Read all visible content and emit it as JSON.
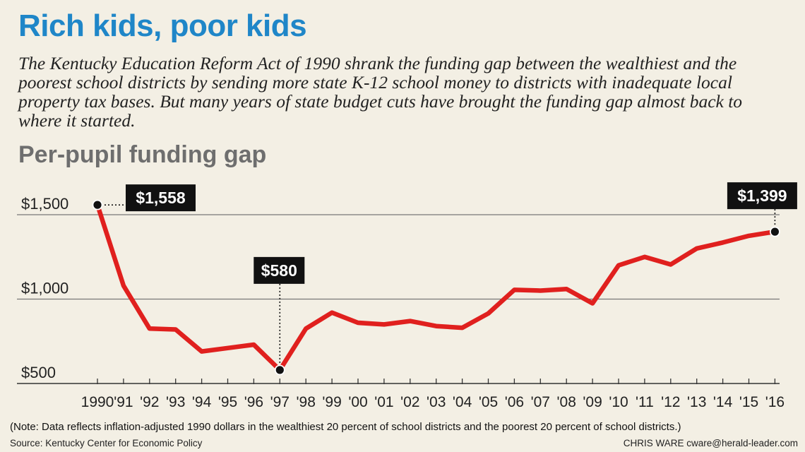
{
  "header": {
    "title": "Rich kids, poor kids",
    "subtitle": "The Kentucky Education Reform Act of 1990 shrank the funding gap between the wealthiest and the poorest school districts by sending more state K-12 school money to districts with inadequate local property tax bases. But many years of state budget cuts have brought the funding gap almost back to where it started."
  },
  "footer": {
    "note": "(Note: Data reflects inflation-adjusted 1990 dollars in the wealthiest 20 percent of school districts and the poorest 20 percent of school districts.)",
    "source": "Source: Kentucky Center for Economic Policy",
    "credit": "CHRIS WARE cware@herald-leader.com"
  },
  "colors": {
    "title": "#1f86c8",
    "line": "#e0201e",
    "callout_bg": "#111111",
    "gridline": "#777777",
    "background": "#f3efe4"
  },
  "chart_data": {
    "type": "line",
    "title": "Per-pupil funding gap",
    "xlabel": "",
    "ylabel": "",
    "categories": [
      "1990",
      "'91",
      "'92",
      "'93",
      "'94",
      "'95",
      "'96",
      "'97",
      "'98",
      "'99",
      "'00",
      "'01",
      "'02",
      "'03",
      "'04",
      "'05",
      "'06",
      "'07",
      "'08",
      "'09",
      "'10",
      "'11",
      "'12",
      "'13",
      "'14",
      "'15",
      "'16"
    ],
    "series": [
      {
        "name": "Per-pupil funding gap",
        "values": [
          1558,
          1080,
          825,
          820,
          690,
          710,
          730,
          580,
          825,
          920,
          860,
          850,
          870,
          840,
          830,
          915,
          1055,
          1050,
          1060,
          975,
          1200,
          1250,
          1205,
          1300,
          1335,
          1375,
          1399
        ]
      }
    ],
    "yticks": [
      {
        "value": 500,
        "label": "$500"
      },
      {
        "value": 1000,
        "label": "$1,000"
      },
      {
        "value": 1500,
        "label": "$1,500"
      }
    ],
    "ylim": [
      500,
      1600
    ],
    "grid": true,
    "annotations": [
      {
        "index": 0,
        "label": "$1,558"
      },
      {
        "index": 7,
        "label": "$580"
      },
      {
        "index": 26,
        "label": "$1,399"
      }
    ]
  }
}
